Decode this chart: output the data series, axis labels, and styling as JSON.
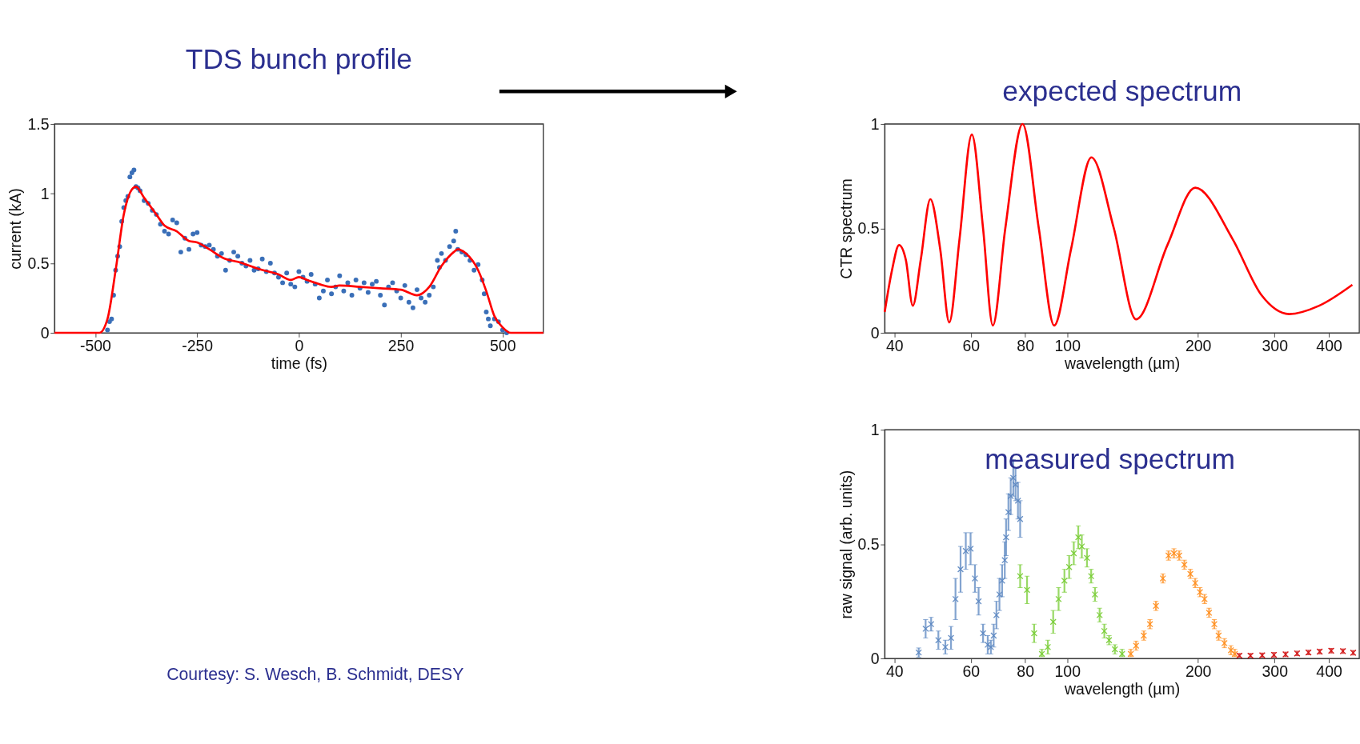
{
  "chart_data": [
    {
      "type": "scatter",
      "title": "TDS bunch profile",
      "xlabel": "time (fs)",
      "ylabel": "current (kA)",
      "xlim": [
        -600,
        600
      ],
      "ylim": [
        0,
        1.5
      ],
      "xticks": [
        -500,
        -250,
        0,
        250,
        500
      ],
      "yticks": [
        0,
        0.5,
        1,
        1.5
      ],
      "grid": false,
      "annotations": [
        "Courtesy: S. Wesch, B. Schmidt, DESY"
      ],
      "series": [
        {
          "type": "scatter",
          "marker": "circle",
          "color": "#3a6fb8",
          "x": [
            -470,
            -465,
            -460,
            -455,
            -450,
            -445,
            -440,
            -435,
            -430,
            -425,
            -420,
            -415,
            -410,
            -405,
            -400,
            -395,
            -390,
            -380,
            -370,
            -360,
            -350,
            -340,
            -330,
            -320,
            -310,
            -300,
            -290,
            -280,
            -270,
            -260,
            -250,
            -240,
            -230,
            -220,
            -210,
            -200,
            -190,
            -180,
            -170,
            -160,
            -150,
            -140,
            -130,
            -120,
            -110,
            -100,
            -90,
            -80,
            -70,
            -60,
            -50,
            -40,
            -30,
            -20,
            -10,
            0,
            10,
            20,
            30,
            40,
            50,
            60,
            70,
            80,
            90,
            100,
            110,
            120,
            130,
            140,
            150,
            160,
            170,
            180,
            190,
            200,
            210,
            220,
            230,
            240,
            250,
            260,
            270,
            280,
            290,
            300,
            310,
            320,
            330,
            340,
            345,
            350,
            360,
            370,
            380,
            385,
            390,
            400,
            410,
            420,
            430,
            440,
            450,
            455,
            460,
            465,
            470,
            480,
            490,
            500,
            510
          ],
          "values": [
            0.02,
            0.08,
            0.1,
            0.27,
            0.45,
            0.55,
            0.62,
            0.8,
            0.9,
            0.95,
            0.98,
            1.12,
            1.15,
            1.17,
            1.05,
            1.04,
            1.02,
            0.95,
            0.93,
            0.88,
            0.85,
            0.78,
            0.73,
            0.71,
            0.81,
            0.79,
            0.58,
            0.68,
            0.6,
            0.71,
            0.72,
            0.63,
            0.62,
            0.63,
            0.6,
            0.55,
            0.57,
            0.45,
            0.52,
            0.58,
            0.55,
            0.5,
            0.48,
            0.52,
            0.45,
            0.46,
            0.53,
            0.44,
            0.5,
            0.43,
            0.4,
            0.36,
            0.43,
            0.35,
            0.33,
            0.44,
            0.4,
            0.37,
            0.42,
            0.35,
            0.25,
            0.3,
            0.38,
            0.28,
            0.33,
            0.41,
            0.3,
            0.36,
            0.27,
            0.38,
            0.32,
            0.36,
            0.29,
            0.35,
            0.37,
            0.27,
            0.2,
            0.33,
            0.36,
            0.3,
            0.25,
            0.34,
            0.22,
            0.18,
            0.31,
            0.25,
            0.22,
            0.27,
            0.33,
            0.52,
            0.47,
            0.57,
            0.52,
            0.62,
            0.66,
            0.73,
            0.6,
            0.58,
            0.56,
            0.52,
            0.45,
            0.49,
            0.38,
            0.28,
            0.15,
            0.1,
            0.05,
            0.1,
            0.08,
            0.02,
            0.0
          ]
        },
        {
          "type": "line",
          "line_style": "solid",
          "color": "#ff0000",
          "x": [
            -600,
            -490,
            -470,
            -450,
            -430,
            -410,
            -400,
            -380,
            -350,
            -330,
            -300,
            -270,
            -250,
            -220,
            -180,
            -150,
            -100,
            -50,
            -20,
            0,
            20,
            50,
            80,
            100,
            150,
            200,
            250,
            290,
            320,
            350,
            380,
            390,
            410,
            440,
            460,
            480,
            500,
            520,
            600
          ],
          "values": [
            0,
            0,
            0.1,
            0.45,
            0.85,
            1.03,
            1.05,
            0.97,
            0.85,
            0.77,
            0.73,
            0.66,
            0.65,
            0.6,
            0.53,
            0.51,
            0.46,
            0.42,
            0.38,
            0.4,
            0.38,
            0.35,
            0.33,
            0.34,
            0.33,
            0.32,
            0.31,
            0.27,
            0.33,
            0.48,
            0.58,
            0.6,
            0.57,
            0.45,
            0.3,
            0.12,
            0.04,
            0,
            0
          ]
        }
      ]
    },
    {
      "type": "line",
      "title": "expected spectrum",
      "xlabel": "wavelength (µm)",
      "ylabel": "CTR spectrum",
      "log": "x",
      "xlim": [
        38,
        470
      ],
      "ylim": [
        0,
        1
      ],
      "xticks": [
        40,
        60,
        80,
        100,
        200,
        300,
        400
      ],
      "yticks": [
        0,
        0.5,
        1
      ],
      "grid": false,
      "series": [
        {
          "type": "line",
          "line_style": "solid",
          "color": "#ff0000",
          "x": [
            38,
            39.5,
            41,
            42.5,
            44.1,
            46,
            48.4,
            51,
            53.5,
            56.5,
            60.3,
            64,
            67.4,
            72,
            78.9,
            86,
            93.3,
            102,
            113.6,
            128,
            144,
            170,
            197,
            240,
            280,
            324,
            380,
            453
          ],
          "values": [
            0.1,
            0.3,
            0.42,
            0.35,
            0.13,
            0.35,
            0.64,
            0.4,
            0.05,
            0.45,
            0.95,
            0.5,
            0.035,
            0.5,
            1.0,
            0.5,
            0.035,
            0.4,
            0.84,
            0.5,
            0.065,
            0.42,
            0.695,
            0.45,
            0.18,
            0.09,
            0.13,
            0.23
          ]
        }
      ]
    },
    {
      "type": "scatter",
      "title": "measured spectrum",
      "xlabel": "wavelength (µm)",
      "ylabel": "raw signal (arb. units)",
      "log": "x",
      "xlim": [
        38,
        470
      ],
      "ylim": [
        0,
        1
      ],
      "xticks": [
        40,
        60,
        80,
        100,
        200,
        300,
        400
      ],
      "yticks": [
        0,
        0.5,
        1
      ],
      "grid": false,
      "marker": "cross",
      "series": [
        {
          "color": "#5a86c0",
          "x": [
            45.5,
            47.2,
            48.6,
            50.5,
            52.4,
            54.0,
            55.3,
            56.8,
            58.4,
            59.9,
            61.3,
            62.5,
            64.0,
            65.6,
            66.7,
            67.7,
            68.7,
            69.8,
            70.8,
            71.8,
            72.3,
            73.2,
            74.1,
            75.1,
            76.0,
            77.0,
            77.9
          ],
          "values": [
            0.026,
            0.13,
            0.15,
            0.08,
            0.05,
            0.09,
            0.26,
            0.39,
            0.47,
            0.48,
            0.35,
            0.25,
            0.11,
            0.06,
            0.05,
            0.1,
            0.19,
            0.28,
            0.34,
            0.43,
            0.53,
            0.64,
            0.71,
            0.79,
            0.76,
            0.69,
            0.61
          ],
          "errors": [
            0.02,
            0.04,
            0.03,
            0.04,
            0.03,
            0.05,
            0.09,
            0.1,
            0.08,
            0.07,
            0.06,
            0.06,
            0.04,
            0.04,
            0.03,
            0.05,
            0.06,
            0.07,
            0.07,
            0.08,
            0.08,
            0.08,
            0.08,
            0.08,
            0.07,
            0.08,
            0.08
          ]
        },
        {
          "color": "#77cc33",
          "x": [
            77.9,
            80.8,
            83.9,
            87.4,
            90.2,
            92.8,
            95.5,
            98.5,
            101,
            103.5,
            106,
            108,
            111,
            113.5,
            115.8,
            118.7,
            121.7,
            124.8,
            128.7,
            133.7
          ],
          "values": [
            0.36,
            0.3,
            0.11,
            0.02,
            0.05,
            0.16,
            0.26,
            0.34,
            0.4,
            0.46,
            0.53,
            0.49,
            0.44,
            0.36,
            0.28,
            0.19,
            0.12,
            0.08,
            0.04,
            0.02
          ],
          "errors": [
            0.05,
            0.06,
            0.04,
            [
              0.008,
              0.04
            ],
            0.03,
            0.05,
            0.05,
            0.05,
            0.05,
            0.05,
            0.05,
            0.05,
            0.04,
            0.03,
            0.03,
            0.03,
            0.03,
            0.02,
            0.02,
            [
              0.008,
              0.04
            ]
          ]
        },
        {
          "color": "#ff8c1a",
          "x": [
            140,
            144,
            150,
            155,
            160,
            166,
            171,
            176,
            181,
            186,
            192,
            197,
            202,
            207,
            212,
            218,
            223,
            230,
            238,
            243
          ],
          "values": [
            0.02,
            0.056,
            0.1,
            0.15,
            0.23,
            0.35,
            0.45,
            0.46,
            0.45,
            0.41,
            0.37,
            0.33,
            0.29,
            0.26,
            0.2,
            0.15,
            0.1,
            0.067,
            0.036,
            0.02
          ],
          "errors": [
            [
              0.008,
              0.04
            ],
            0.02,
            0.02,
            0.02,
            0.02,
            0.02,
            0.02,
            0.02,
            0.02,
            0.02,
            0.02,
            0.02,
            0.02,
            0.02,
            0.02,
            0.02,
            0.02,
            0.02,
            0.02,
            [
              0.008,
              0.04
            ]
          ]
        },
        {
          "color": "#d01010",
          "x": [
            249,
            264,
            281,
            299,
            318,
            338,
            359,
            381,
            405,
            431,
            455
          ],
          "values": [
            0.012,
            0.012,
            0.014,
            0.016,
            0.018,
            0.022,
            0.026,
            0.03,
            0.034,
            0.032,
            0.025
          ],
          "errors": [
            [
              0.006,
              0.022
            ],
            [
              0.006,
              0.022
            ],
            [
              0.006,
              0.024
            ],
            0.01,
            0.01,
            0.01,
            0.01,
            0.01,
            0.01,
            0.01,
            0.01
          ]
        }
      ]
    }
  ]
}
